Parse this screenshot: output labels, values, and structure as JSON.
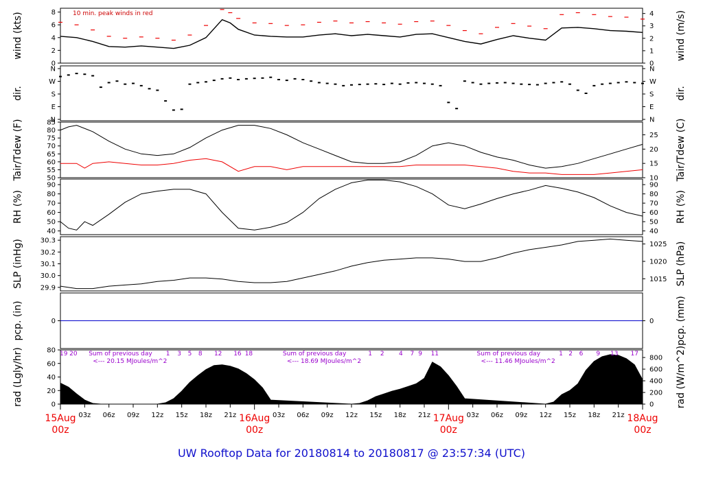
{
  "footer": {
    "title": "UW Rooftop Data for 20180814  to  20180817 @ 23:57:34  (UTC)",
    "color": "#1010cc"
  },
  "x_axis": {
    "hours_total": 72,
    "hour_ticks": [
      {
        "h": 3,
        "label": "03z"
      },
      {
        "h": 6,
        "label": "06z"
      },
      {
        "h": 9,
        "label": "09z"
      },
      {
        "h": 12,
        "label": "12z"
      },
      {
        "h": 15,
        "label": "15z"
      },
      {
        "h": 18,
        "label": "18z"
      },
      {
        "h": 21,
        "label": "21z"
      },
      {
        "h": 27,
        "label": "03z"
      },
      {
        "h": 30,
        "label": "06z"
      },
      {
        "h": 33,
        "label": "09z"
      },
      {
        "h": 36,
        "label": "12z"
      },
      {
        "h": 39,
        "label": "15z"
      },
      {
        "h": 42,
        "label": "18z"
      },
      {
        "h": 45,
        "label": "21z"
      },
      {
        "h": 51,
        "label": "03z"
      },
      {
        "h": 54,
        "label": "06z"
      },
      {
        "h": 57,
        "label": "09z"
      },
      {
        "h": 60,
        "label": "12z"
      },
      {
        "h": 63,
        "label": "15z"
      },
      {
        "h": 66,
        "label": "18z"
      },
      {
        "h": 69,
        "label": "21z"
      }
    ],
    "day_ticks": [
      {
        "h": 0,
        "label": "15Aug",
        "sub": "00z"
      },
      {
        "h": 24,
        "label": "16Aug",
        "sub": "00z"
      },
      {
        "h": 48,
        "label": "17Aug",
        "sub": "00z"
      },
      {
        "h": 72,
        "label": "18Aug",
        "sub": "00z"
      }
    ],
    "day_color": "#ee0000"
  },
  "chart_data": [
    {
      "id": "wind",
      "type": "line",
      "ylabel_left": "wind (kts)",
      "ylabel_right": "wind (m/s)",
      "ylim": [
        0,
        8.6
      ],
      "left_ticks": [
        "0",
        "2",
        "4",
        "6",
        "8"
      ],
      "right_ticks": [
        "0",
        "1",
        "2",
        "3",
        "4"
      ],
      "annotation": "10 min. peak winds in red",
      "series": [
        {
          "role": "mean",
          "color": "#000000",
          "x": [
            0,
            2,
            4,
            6,
            8,
            10,
            12,
            14,
            16,
            18,
            20,
            21,
            22,
            24,
            26,
            28,
            30,
            32,
            34,
            36,
            38,
            40,
            42,
            44,
            46,
            48,
            50,
            52,
            54,
            56,
            58,
            60,
            62,
            64,
            66,
            68,
            70,
            72
          ],
          "values": [
            4.2,
            4.0,
            3.4,
            2.6,
            2.5,
            2.7,
            2.5,
            2.3,
            2.8,
            4.0,
            6.8,
            6.3,
            5.3,
            4.4,
            4.2,
            4.1,
            4.1,
            4.4,
            4.6,
            4.3,
            4.5,
            4.3,
            4.1,
            4.5,
            4.6,
            4.0,
            3.4,
            3.0,
            3.7,
            4.3,
            3.9,
            3.6,
            5.5,
            5.6,
            5.4,
            5.1,
            5.0,
            4.8
          ]
        },
        {
          "role": "peak",
          "color": "#ee0000",
          "x": [
            0,
            2,
            4,
            6,
            8,
            10,
            12,
            14,
            16,
            18,
            20,
            21,
            22,
            24,
            26,
            28,
            30,
            32,
            34,
            36,
            38,
            40,
            42,
            44,
            46,
            48,
            50,
            52,
            54,
            56,
            58,
            60,
            62,
            64,
            66,
            68,
            70,
            72
          ],
          "values": [
            6.4,
            6.0,
            5.2,
            4.2,
            3.9,
            4.1,
            3.9,
            3.6,
            4.4,
            5.9,
            8.4,
            7.9,
            7.0,
            6.3,
            6.2,
            5.9,
            6.0,
            6.4,
            6.6,
            6.3,
            6.5,
            6.3,
            6.1,
            6.5,
            6.6,
            5.9,
            5.1,
            4.6,
            5.6,
            6.2,
            5.8,
            5.4,
            7.6,
            7.9,
            7.6,
            7.3,
            7.2,
            6.9
          ]
        }
      ]
    },
    {
      "id": "dir",
      "type": "scatter",
      "ylabel_left": "dir.",
      "ylabel_right": "dir.",
      "ylim": [
        0,
        360
      ],
      "left_ticks": [
        "N",
        "E",
        "S",
        "W",
        "N"
      ],
      "right_ticks": [
        "N",
        "E",
        "S",
        "W",
        "N"
      ],
      "series": [
        {
          "role": "direction",
          "color": "#000000",
          "x": [
            0,
            1,
            2,
            3,
            4,
            5,
            6,
            7,
            8,
            9,
            10,
            11,
            12,
            13,
            14,
            15,
            16,
            17,
            18,
            19,
            20,
            21,
            22,
            23,
            24,
            25,
            26,
            27,
            28,
            29,
            30,
            31,
            32,
            33,
            34,
            35,
            36,
            37,
            38,
            39,
            40,
            41,
            42,
            43,
            44,
            45,
            46,
            47,
            48,
            49,
            50,
            51,
            52,
            53,
            54,
            55,
            56,
            57,
            58,
            59,
            60,
            61,
            62,
            63,
            64,
            65,
            66,
            67,
            68,
            69,
            70,
            71,
            72
          ],
          "values": [
            290,
            300,
            310,
            305,
            295,
            220,
            250,
            260,
            240,
            245,
            230,
            210,
            200,
            130,
            70,
            75,
            240,
            250,
            255,
            265,
            275,
            280,
            270,
            275,
            278,
            280,
            285,
            270,
            265,
            275,
            270,
            260,
            250,
            245,
            240,
            230,
            235,
            238,
            240,
            242,
            238,
            245,
            240,
            248,
            250,
            245,
            240,
            230,
            120,
            80,
            260,
            250,
            240,
            245,
            248,
            250,
            245,
            240,
            238,
            236,
            245,
            250,
            255,
            240,
            200,
            180,
            230,
            240,
            245,
            250,
            255,
            250,
            245
          ]
        }
      ]
    },
    {
      "id": "temp",
      "type": "line",
      "ylabel_left": "Tair/Tdew (F)",
      "ylabel_right": "Tair/Tdew (C)",
      "ylim": [
        50,
        85
      ],
      "left_ticks": [
        "50",
        "55",
        "60",
        "65",
        "70",
        "75",
        "80",
        "85"
      ],
      "right_ticks": [
        "10",
        "15",
        "20",
        "25"
      ],
      "series": [
        {
          "role": "air",
          "color": "#000000",
          "x": [
            0,
            1,
            2,
            4,
            6,
            8,
            10,
            12,
            14,
            16,
            18,
            20,
            22,
            24,
            26,
            28,
            30,
            32,
            34,
            36,
            38,
            40,
            42,
            44,
            46,
            48,
            50,
            52,
            54,
            56,
            58,
            60,
            62,
            64,
            66,
            68,
            70,
            72
          ],
          "values": [
            80,
            82,
            83,
            79,
            73,
            68,
            65,
            64,
            65,
            69,
            75,
            80,
            83,
            83,
            81,
            77,
            72,
            68,
            64,
            60,
            59,
            59,
            60,
            64,
            70,
            72,
            70,
            66,
            63,
            61,
            58,
            56,
            57,
            59,
            62,
            65,
            68,
            71
          ]
        },
        {
          "role": "dew",
          "color": "#ee0000",
          "x": [
            0,
            2,
            3,
            4,
            6,
            8,
            10,
            12,
            14,
            16,
            18,
            20,
            22,
            24,
            26,
            28,
            30,
            32,
            34,
            36,
            38,
            40,
            42,
            44,
            46,
            48,
            50,
            52,
            54,
            56,
            58,
            60,
            62,
            64,
            66,
            68,
            70,
            72
          ],
          "values": [
            59,
            59,
            56,
            59,
            60,
            59,
            58,
            58,
            59,
            61,
            62,
            60,
            54,
            57,
            57,
            55,
            57,
            57,
            57,
            57,
            57,
            57,
            57,
            58,
            58,
            58,
            58,
            57,
            56,
            54,
            53,
            53,
            52,
            52,
            52,
            53,
            54,
            55
          ]
        }
      ]
    },
    {
      "id": "rh",
      "type": "line",
      "ylabel_left": "RH (%)",
      "ylabel_right": "RH (%)",
      "ylim": [
        36,
        96
      ],
      "left_ticks": [
        "40",
        "50",
        "60",
        "70",
        "80",
        "90"
      ],
      "right_ticks": [
        "40",
        "50",
        "60",
        "70",
        "80",
        "90"
      ],
      "series": [
        {
          "role": "rh",
          "color": "#000000",
          "x": [
            0,
            1,
            2,
            3,
            4,
            6,
            8,
            10,
            12,
            14,
            16,
            18,
            20,
            22,
            24,
            26,
            28,
            30,
            32,
            34,
            36,
            38,
            40,
            42,
            44,
            46,
            48,
            50,
            52,
            54,
            56,
            58,
            60,
            62,
            64,
            66,
            68,
            70,
            72
          ],
          "values": [
            50,
            43,
            41,
            50,
            46,
            58,
            71,
            80,
            83,
            85,
            85,
            80,
            60,
            43,
            41,
            44,
            49,
            60,
            75,
            85,
            92,
            95,
            95,
            93,
            88,
            80,
            68,
            64,
            69,
            75,
            80,
            84,
            89,
            86,
            82,
            76,
            67,
            60,
            56
          ]
        }
      ]
    },
    {
      "id": "slp",
      "type": "line",
      "ylabel_left": "SLP (inHg)",
      "ylabel_right": "SLP (hPa)",
      "ylim": [
        29.87,
        30.33
      ],
      "left_ticks": [
        "29.9",
        "30.0",
        "30.1",
        "30.2",
        "30.3"
      ],
      "right_ticks": [
        "1015",
        "1020",
        "1025"
      ],
      "series": [
        {
          "role": "slp",
          "color": "#000000",
          "x": [
            0,
            2,
            4,
            6,
            8,
            10,
            12,
            14,
            16,
            18,
            20,
            22,
            24,
            26,
            28,
            30,
            32,
            34,
            36,
            38,
            40,
            42,
            44,
            46,
            48,
            50,
            52,
            54,
            56,
            58,
            60,
            62,
            64,
            66,
            68,
            70,
            72
          ],
          "values": [
            29.91,
            29.89,
            29.89,
            29.91,
            29.92,
            29.93,
            29.95,
            29.96,
            29.98,
            29.98,
            29.97,
            29.95,
            29.94,
            29.94,
            29.95,
            29.98,
            30.01,
            30.04,
            30.08,
            30.11,
            30.13,
            30.14,
            30.15,
            30.15,
            30.14,
            30.12,
            30.12,
            30.15,
            30.19,
            30.22,
            30.24,
            30.26,
            30.29,
            30.3,
            30.31,
            30.3,
            30.29
          ]
        }
      ]
    },
    {
      "id": "pcp",
      "type": "line",
      "ylabel_left": "pcp. (in)",
      "ylabel_right": "pcp. (mm)",
      "ylim": [
        -0.1,
        0.1
      ],
      "left_ticks": [
        "0"
      ],
      "right_ticks": [
        "0"
      ],
      "series": [
        {
          "role": "precip",
          "color": "#0000cc",
          "x": [
            0,
            72
          ],
          "values": [
            0,
            0
          ]
        }
      ]
    },
    {
      "id": "rad",
      "type": "area",
      "ylabel_left": "rad (Lgly/hr)",
      "ylabel_right": "rad (W/m^2)",
      "ylim": [
        0,
        80
      ],
      "left_ticks": [
        "0",
        "20",
        "40",
        "60",
        "80"
      ],
      "right_ticks": [
        "0",
        "200",
        "400",
        "600",
        "800"
      ],
      "series": [
        {
          "role": "radiation",
          "color": "#000000",
          "x": [
            0,
            1,
            2,
            3,
            4,
            5,
            12,
            13,
            14,
            15,
            16,
            17,
            18,
            19,
            20,
            21,
            22,
            23,
            24,
            25,
            26,
            36,
            37,
            38,
            39,
            40,
            41,
            42,
            43,
            44,
            45,
            46,
            47,
            48,
            49,
            50,
            60,
            61,
            62,
            63,
            64,
            65,
            66,
            67,
            68,
            69,
            70,
            71,
            72
          ],
          "values": [
            31,
            25,
            15,
            6,
            1,
            0,
            0,
            2,
            8,
            19,
            32,
            42,
            51,
            57,
            58,
            56,
            52,
            45,
            36,
            24,
            6,
            0,
            1,
            5,
            11,
            15,
            19,
            22,
            26,
            30,
            38,
            62,
            55,
            42,
            26,
            8,
            0,
            3,
            14,
            20,
            30,
            50,
            63,
            70,
            73,
            72,
            67,
            58,
            36
          ]
        }
      ],
      "top_labels": [
        {
          "h": 0.4,
          "text": "19"
        },
        {
          "h": 1.6,
          "text": "20"
        },
        {
          "h": 13.3,
          "text": "1"
        },
        {
          "h": 14.7,
          "text": "3"
        },
        {
          "h": 16.0,
          "text": "5"
        },
        {
          "h": 17.3,
          "text": "8"
        },
        {
          "h": 19.5,
          "text": "12"
        },
        {
          "h": 21.9,
          "text": "16"
        },
        {
          "h": 23.3,
          "text": "18"
        },
        {
          "h": 38.3,
          "text": "1"
        },
        {
          "h": 39.8,
          "text": "2"
        },
        {
          "h": 42.1,
          "text": "4"
        },
        {
          "h": 43.5,
          "text": "7"
        },
        {
          "h": 44.5,
          "text": "9"
        },
        {
          "h": 46.3,
          "text": "11"
        },
        {
          "h": 61.9,
          "text": "1"
        },
        {
          "h": 63.1,
          "text": "2"
        },
        {
          "h": 64.4,
          "text": "6"
        },
        {
          "h": 66.5,
          "text": "9"
        },
        {
          "h": 68.5,
          "text": "13"
        },
        {
          "h": 71.0,
          "text": "17"
        }
      ],
      "day_summaries": [
        {
          "h": 3.5,
          "head": "Sum of previous day",
          "value": "<--- 20.15 MJoules/m^2"
        },
        {
          "h": 27.5,
          "head": "Sum of previous day",
          "value": "<--- 18.69 MJoules/m^2"
        },
        {
          "h": 51.5,
          "head": "Sum of previous day",
          "value": "<--- 11.46 MJoules/m^2"
        }
      ]
    }
  ]
}
